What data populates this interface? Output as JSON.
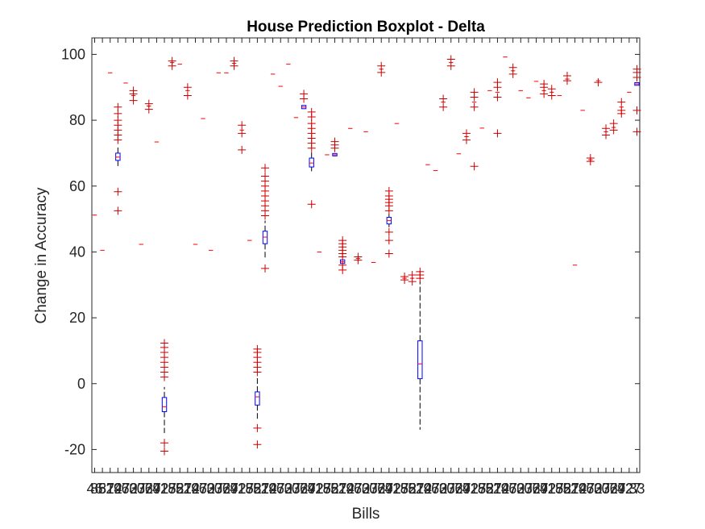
{
  "chart_data": {
    "type": "boxplot",
    "title": "House Prediction Boxplot - Delta",
    "xlabel": "Bills",
    "ylabel": "Change in Accuracy",
    "ylim": [
      -27,
      105
    ],
    "yticks": [
      -20,
      0,
      20,
      40,
      60,
      80,
      100
    ],
    "grid": false,
    "legend": "none",
    "colors": {
      "box": "#0000ff",
      "median": "#ff0000",
      "outlier": "#cc0000",
      "whisker": "#000000",
      "axis": "#262626"
    },
    "x_tick_labels_note": "x tick labels overlap illegibly; first reads 46, last reads 33",
    "xtick_first": "46",
    "xtick_last": "33",
    "bills": [
      {
        "flat": 51.2
      },
      {
        "flat": 40.5
      },
      {
        "flat": 94.4
      },
      {
        "q1": 67.8,
        "med": 68.8,
        "q3": 70.0,
        "wlo": 66.0,
        "whi": 72.0,
        "outliers": [
          52.5,
          58.3,
          74.0,
          75.5,
          77.0,
          78.5,
          80.0,
          82.0,
          84.0
        ]
      },
      {
        "flat": 91.3
      },
      {
        "flat": 87.5,
        "outliers": [
          86.0,
          88.0,
          89.0
        ]
      },
      {
        "flat": 42.3
      },
      {
        "flat": 84.3,
        "outliers": [
          83.3,
          85.0
        ]
      },
      {
        "flat": 73.4
      },
      {
        "q1": -8.5,
        "med": -7.0,
        "q3": -4.2,
        "wlo": -15.0,
        "whi": -1.0,
        "outliers": [
          -20.5,
          -18.0,
          2.0,
          3.5,
          5.0,
          6.5,
          8.0,
          9.5,
          11.0,
          12.3
        ]
      },
      {
        "flat": 97.5,
        "outliers": [
          96.5,
          98.0
        ]
      },
      {
        "flat": 97.0
      },
      {
        "flat": 89.0,
        "outliers": [
          87.5,
          90.0
        ]
      },
      {
        "flat": 42.3
      },
      {
        "flat": 80.5
      },
      {
        "flat": 40.5
      },
      {
        "flat": 94.4
      },
      {
        "flat": 94.4
      },
      {
        "flat": 97.3,
        "outliers": [
          96.5,
          98.0
        ]
      },
      {
        "flat": 77.0,
        "outliers": [
          71.0,
          76.0,
          78.5
        ]
      },
      {
        "flat": 43.5
      },
      {
        "q1": -6.5,
        "med": -4.0,
        "q3": -2.5,
        "wlo": -11.0,
        "whi": 2.0,
        "outliers": [
          -18.5,
          -13.5,
          3.5,
          5.0,
          6.5,
          8.0,
          9.5,
          10.5
        ]
      },
      {
        "q1": 42.5,
        "med": 44.5,
        "q3": 46.3,
        "wlo": 38.0,
        "whi": 49.5,
        "outliers": [
          35.0,
          51.0,
          52.5,
          54.0,
          55.5,
          57.0,
          58.5,
          60.0,
          61.5,
          63.0,
          65.5
        ]
      },
      {
        "flat": 94.0
      },
      {
        "flat": 90.3
      },
      {
        "flat": 97.0
      },
      {
        "flat": 80.8
      },
      {
        "q1": 83.5,
        "med": 84.0,
        "q3": 84.5,
        "wlo": 83.5,
        "whi": 84.5,
        "outliers": [
          86.5,
          88.0
        ]
      },
      {
        "q1": 65.8,
        "med": 67.0,
        "q3": 68.5,
        "wlo": 64.5,
        "whi": 70.5,
        "outliers": [
          54.5,
          71.5,
          73.0,
          74.5,
          76.0,
          77.5,
          79.0,
          81.0,
          82.5
        ]
      },
      {
        "flat": 40.0
      },
      {
        "flat": 69.5
      },
      {
        "q1": 69.2,
        "med": 69.5,
        "q3": 69.9,
        "wlo": 69.2,
        "whi": 69.9,
        "outliers": [
          71.5,
          72.5,
          73.5
        ]
      },
      {
        "q1": 36.5,
        "med": 37.0,
        "q3": 37.6,
        "wlo": 36.5,
        "whi": 37.6,
        "outliers": [
          34.5,
          36.0,
          38.5,
          39.5,
          40.5,
          41.5,
          42.5,
          43.5
        ]
      },
      {
        "flat": 77.5
      },
      {
        "flat": 38.0,
        "outliers": [
          37.5,
          38.5
        ]
      },
      {
        "flat": 76.5
      },
      {
        "flat": 36.8
      },
      {
        "flat": 95.5,
        "outliers": [
          94.5,
          96.5
        ]
      },
      {
        "q1": 48.5,
        "med": 49.5,
        "q3": 50.5,
        "wlo": 47.5,
        "whi": 51.5,
        "outliers": [
          39.5,
          43.5,
          46.0,
          52.5,
          54.0,
          55.0,
          56.0,
          57.0,
          58.5
        ]
      },
      {
        "flat": 79.0
      },
      {
        "flat": 32.0,
        "outliers": [
          31.5,
          32.5
        ]
      },
      {
        "flat": 32.0,
        "outliers": [
          31.0,
          33.0
        ]
      },
      {
        "q1": 1.5,
        "med": 6.0,
        "q3": 13.0,
        "wlo": -14.0,
        "whi": 31.0,
        "outliers": [
          32.0,
          33.0,
          34.0
        ]
      },
      {
        "flat": 66.5
      },
      {
        "flat": 64.7
      },
      {
        "flat": 85.5,
        "outliers": [
          84.0,
          86.5
        ]
      },
      {
        "flat": 97.5,
        "outliers": [
          96.5,
          98.5
        ]
      },
      {
        "flat": 69.8
      },
      {
        "flat": 75.0,
        "outliers": [
          74.0,
          76.0
        ]
      },
      {
        "flat": 85.5,
        "outliers": [
          66.0,
          84.0,
          87.0,
          88.5
        ]
      },
      {
        "flat": 77.6
      },
      {
        "flat": 89.0
      },
      {
        "flat": 88.5,
        "outliers": [
          76.0,
          87.0,
          90.0,
          91.5
        ]
      },
      {
        "flat": 99.2
      },
      {
        "flat": 95.0,
        "outliers": [
          94.0,
          96.0
        ]
      },
      {
        "flat": 89.0
      },
      {
        "flat": 86.8
      },
      {
        "flat": 91.8
      },
      {
        "flat": 89.0,
        "outliers": [
          88.0,
          90.0,
          91.0
        ]
      },
      {
        "flat": 88.5,
        "outliers": [
          87.5,
          89.5
        ]
      },
      {
        "flat": 87.5
      },
      {
        "flat": 92.5,
        "outliers": [
          92.0,
          93.5
        ]
      },
      {
        "flat": 36.0
      },
      {
        "flat": 83.0
      },
      {
        "flat": 68.0,
        "outliers": [
          67.5,
          68.5
        ]
      },
      {
        "flat": 92.0,
        "outliers": [
          91.5
        ]
      },
      {
        "flat": 76.5,
        "outliers": [
          75.5,
          77.5
        ]
      },
      {
        "flat": 77.8,
        "outliers": [
          77.0,
          79.0
        ]
      },
      {
        "flat": 84.0,
        "outliers": [
          82.0,
          83.0,
          85.5
        ]
      },
      {
        "flat": 88.5
      },
      {
        "q1": 90.6,
        "med": 91.0,
        "q3": 91.4,
        "wlo": 90.6,
        "whi": 91.4,
        "outliers": [
          76.5,
          83.0,
          93.0,
          94.5,
          95.5
        ]
      }
    ]
  }
}
